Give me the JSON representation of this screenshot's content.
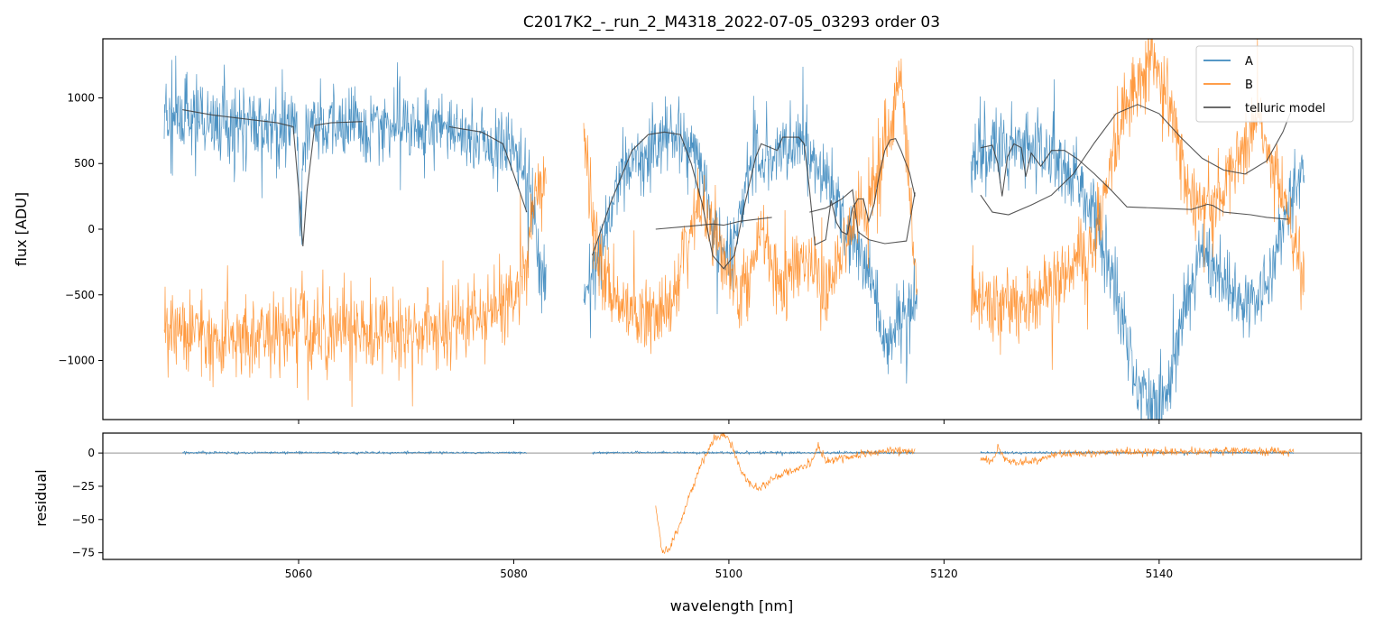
{
  "chart_data": [
    {
      "panel": "top",
      "type": "line",
      "title": "C2017K2_-_run_2_M4318_2022-07-05_03293  order 03",
      "xlabel": "",
      "ylabel": "flux [ADU]",
      "xlim": [
        5041.8,
        5158.8
      ],
      "ylim": [
        -1450,
        1450
      ],
      "xticks": [
        5060,
        5080,
        5100,
        5120,
        5140
      ],
      "yticks": [
        -1000,
        -500,
        0,
        500,
        1000
      ],
      "ytick_labels": [
        "−1000",
        "−500",
        "0",
        "500",
        "1000"
      ],
      "legend_position": "top-right",
      "segments": [
        [
          5047.5,
          5083
        ],
        [
          5086.5,
          5117.5
        ],
        [
          5122.5,
          5153.5
        ]
      ],
      "series": [
        {
          "name": "A",
          "color": "#1f77b4",
          "noise": 210,
          "envelope": [
            [
              5047.5,
              850
            ],
            [
              5050,
              820
            ],
            [
              5055,
              800
            ],
            [
              5060,
              760
            ],
            [
              5062,
              790
            ],
            [
              5070,
              790
            ],
            [
              5075,
              720
            ],
            [
              5080,
              600
            ],
            [
              5081.5,
              300
            ],
            [
              5082.5,
              -250
            ],
            [
              5083,
              -500
            ],
            [
              5086.5,
              -450
            ],
            [
              5088,
              -200
            ],
            [
              5090,
              400
            ],
            [
              5094,
              730
            ],
            [
              5097,
              650
            ],
            [
              5099,
              -150
            ],
            [
              5100,
              -250
            ],
            [
              5102,
              500
            ],
            [
              5106,
              650
            ],
            [
              5109,
              400
            ],
            [
              5111,
              50
            ],
            [
              5113,
              -300
            ],
            [
              5114.5,
              -900
            ],
            [
              5116,
              -700
            ],
            [
              5117.5,
              -500
            ],
            [
              5122.5,
              550
            ],
            [
              5125,
              650
            ],
            [
              5128,
              620
            ],
            [
              5131,
              520
            ],
            [
              5134,
              150
            ],
            [
              5136,
              -500
            ],
            [
              5138,
              -1150
            ],
            [
              5140,
              -1350
            ],
            [
              5142,
              -800
            ],
            [
              5144,
              -150
            ],
            [
              5146,
              -400
            ],
            [
              5148,
              -550
            ],
            [
              5150,
              -450
            ],
            [
              5152,
              150
            ],
            [
              5153.5,
              500
            ]
          ],
          "dips": [
            [
              5060.2,
              800,
              0.25
            ],
            [
              5056.8,
              150,
              0.12
            ]
          ]
        },
        {
          "name": "B",
          "color": "#ff7f0e",
          "noise": 220,
          "envelope": [
            [
              5047.5,
              -750
            ],
            [
              5050,
              -800
            ],
            [
              5055,
              -820
            ],
            [
              5060,
              -820
            ],
            [
              5062,
              -780
            ],
            [
              5070,
              -790
            ],
            [
              5075,
              -700
            ],
            [
              5079,
              -600
            ],
            [
              5081,
              -300
            ],
            [
              5082,
              300
            ],
            [
              5083,
              350
            ],
            [
              5086.5,
              650
            ],
            [
              5088,
              -300
            ],
            [
              5090,
              -600
            ],
            [
              5093,
              -700
            ],
            [
              5095,
              -500
            ],
            [
              5097,
              200
            ],
            [
              5099,
              -100
            ],
            [
              5101,
              -550
            ],
            [
              5103,
              0
            ],
            [
              5105,
              -400
            ],
            [
              5107,
              -200
            ],
            [
              5109,
              -450
            ],
            [
              5111,
              -100
            ],
            [
              5113,
              200
            ],
            [
              5114.5,
              600
            ],
            [
              5116,
              1200
            ],
            [
              5117.5,
              -500
            ],
            [
              5122.5,
              -500
            ],
            [
              5125,
              -600
            ],
            [
              5128,
              -550
            ],
            [
              5131,
              -400
            ],
            [
              5134,
              -100
            ],
            [
              5136,
              700
            ],
            [
              5138,
              1200
            ],
            [
              5139.5,
              1350
            ],
            [
              5141,
              950
            ],
            [
              5143,
              200
            ],
            [
              5145,
              150
            ],
            [
              5147,
              500
            ],
            [
              5149,
              900
            ],
            [
              5151,
              400
            ],
            [
              5153.5,
              -400
            ]
          ],
          "dips": [
            [
              5060.2,
              -300,
              0.2
            ]
          ]
        },
        {
          "name": "telluric model",
          "color": "#3a3a3a",
          "points": [
            [
              5049.2,
              910
            ],
            [
              5052,
              870
            ],
            [
              5055,
              840
            ],
            [
              5058,
              810
            ],
            [
              5059.5,
              780
            ],
            [
              5060,
              300
            ],
            [
              5060.4,
              -130
            ],
            [
              5060.8,
              300
            ],
            [
              5061.5,
              790
            ],
            [
              5063,
              810
            ],
            [
              5066,
              820
            ],
            [
              5070,
              810
            ],
            [
              5074,
              780
            ],
            [
              5077,
              740
            ],
            [
              5079,
              650
            ],
            [
              5080.5,
              300
            ],
            [
              5081.2,
              130
            ],
            [
              5087.3,
              -200
            ],
            [
              5089,
              200
            ],
            [
              5091,
              600
            ],
            [
              5092.5,
              720
            ],
            [
              5094,
              740
            ],
            [
              5095.5,
              720
            ],
            [
              5096.5,
              500
            ],
            [
              5097.5,
              200
            ],
            [
              5098.5,
              -200
            ],
            [
              5099.5,
              -300
            ],
            [
              5100.5,
              -200
            ],
            [
              5101.5,
              200
            ],
            [
              5102.5,
              550
            ],
            [
              5103,
              650
            ],
            [
              5104.5,
              600
            ],
            [
              5105,
              700
            ],
            [
              5106.5,
              700
            ],
            [
              5107,
              650
            ],
            [
              5107.5,
              300
            ],
            [
              5108,
              -120
            ],
            [
              5109,
              -80
            ],
            [
              5109.5,
              220
            ],
            [
              5110,
              50
            ],
            [
              5110.5,
              -20
            ],
            [
              5111,
              -40
            ],
            [
              5111.5,
              160
            ],
            [
              5112,
              230
            ],
            [
              5112.5,
              230
            ],
            [
              5113,
              60
            ],
            [
              5113.5,
              190
            ],
            [
              5114,
              420
            ],
            [
              5114.5,
              600
            ],
            [
              5115,
              680
            ],
            [
              5115.5,
              690
            ],
            [
              5116,
              600
            ],
            [
              5116.8,
              430
            ],
            [
              5117.3,
              250
            ],
            [
              5123.4,
              620
            ],
            [
              5124.5,
              640
            ],
            [
              5125,
              500
            ],
            [
              5125.4,
              250
            ],
            [
              5125.9,
              550
            ],
            [
              5126.5,
              650
            ],
            [
              5127.2,
              620
            ],
            [
              5127.6,
              400
            ],
            [
              5128.1,
              580
            ],
            [
              5129,
              480
            ],
            [
              5130,
              600
            ],
            [
              5131.2,
              600
            ],
            [
              5132.5,
              530
            ],
            [
              5134,
              420
            ],
            [
              5135.5,
              300
            ],
            [
              5137,
              170
            ],
            [
              5140,
              160
            ],
            [
              5143,
              150
            ],
            [
              5144.5,
              190
            ],
            [
              5145,
              180
            ],
            [
              5146,
              130
            ],
            [
              5148.5,
              110
            ],
            [
              5150,
              90
            ],
            [
              5152,
              75
            ]
          ]
        },
        {
          "name": "telluric model (offset)",
          "color": "#3a3a3a",
          "points": [
            [
              5093.2,
              0
            ],
            [
              5096,
              20
            ],
            [
              5098.5,
              40
            ],
            [
              5099.5,
              30
            ],
            [
              5101,
              60
            ],
            [
              5104,
              90
            ],
            [
              5107.5,
              130
            ],
            [
              5109,
              160
            ],
            [
              5110.5,
              230
            ],
            [
              5111.5,
              300
            ],
            [
              5112,
              -20
            ],
            [
              5113,
              -80
            ],
            [
              5114.5,
              -110
            ],
            [
              5116.5,
              -90
            ],
            [
              5117.3,
              280
            ],
            [
              5123.4,
              260
            ],
            [
              5124.5,
              130
            ],
            [
              5126,
              110
            ],
            [
              5128,
              180
            ],
            [
              5130,
              260
            ],
            [
              5132,
              420
            ],
            [
              5134,
              660
            ],
            [
              5136,
              880
            ],
            [
              5138,
              950
            ],
            [
              5140,
              880
            ],
            [
              5142,
              700
            ],
            [
              5144,
              540
            ],
            [
              5146,
              450
            ],
            [
              5148,
              420
            ],
            [
              5150,
              520
            ],
            [
              5151.5,
              740
            ],
            [
              5152.5,
              950
            ]
          ]
        }
      ]
    },
    {
      "panel": "bottom",
      "type": "line",
      "title": "",
      "xlabel": "wavelength [nm]",
      "ylabel": "residual",
      "xlim": [
        5041.8,
        5158.8
      ],
      "ylim": [
        -80,
        15
      ],
      "xticks": [
        5060,
        5080,
        5100,
        5120,
        5140
      ],
      "xtick_labels": [
        "5060",
        "5080",
        "5100",
        "5120",
        "5140"
      ],
      "yticks": [
        -75,
        -50,
        -25,
        0
      ],
      "ytick_labels": [
        "−75",
        "−50",
        "−25",
        "0"
      ],
      "hline": 0,
      "series": [
        {
          "name": "A",
          "color": "#1f77b4",
          "noise": 0.6,
          "segments": [
            [
              5049.2,
              5081.2
            ],
            [
              5087.3,
              5117.3
            ],
            [
              5123.4,
              5152.5
            ]
          ],
          "envelope": [
            [
              5049,
              0.3
            ],
            [
              5081,
              0.3
            ],
            [
              5087,
              0.3
            ],
            [
              5117,
              0.3
            ],
            [
              5123,
              0.3
            ],
            [
              5152,
              0.3
            ]
          ]
        },
        {
          "name": "B",
          "color": "#ff7f0e",
          "noise": 2.2,
          "segments": [
            [
              5093.2,
              5117.3
            ],
            [
              5123.4,
              5152.5
            ]
          ],
          "envelope": [
            [
              5093.2,
              -40
            ],
            [
              5093.8,
              -75
            ],
            [
              5094.5,
              -72
            ],
            [
              5095.5,
              -52
            ],
            [
              5096.5,
              -28
            ],
            [
              5097.5,
              -8
            ],
            [
              5098.5,
              10
            ],
            [
              5099.5,
              14
            ],
            [
              5100.3,
              5
            ],
            [
              5101.2,
              -15
            ],
            [
              5102,
              -23
            ],
            [
              5102.8,
              -28
            ],
            [
              5103.5,
              -22
            ],
            [
              5104.5,
              -18
            ],
            [
              5106,
              -13
            ],
            [
              5107.5,
              -9
            ],
            [
              5108.3,
              5
            ],
            [
              5109,
              -6
            ],
            [
              5110.5,
              -4
            ],
            [
              5111.5,
              -2
            ],
            [
              5113,
              0
            ],
            [
              5115,
              2
            ],
            [
              5117.3,
              1
            ],
            [
              5123.4,
              -4
            ],
            [
              5124.5,
              -6
            ],
            [
              5125,
              5
            ],
            [
              5125.6,
              -4
            ],
            [
              5127,
              -8
            ],
            [
              5129,
              -4
            ],
            [
              5131,
              -1
            ],
            [
              5133,
              0
            ],
            [
              5136,
              1
            ],
            [
              5140,
              1
            ],
            [
              5144,
              1
            ],
            [
              5148,
              2
            ],
            [
              5152,
              1
            ]
          ]
        }
      ]
    }
  ],
  "legend": {
    "entries": [
      {
        "label": "A",
        "color": "#1f77b4"
      },
      {
        "label": "B",
        "color": "#ff7f0e"
      },
      {
        "label": "telluric model",
        "color": "#3a3a3a"
      }
    ]
  }
}
